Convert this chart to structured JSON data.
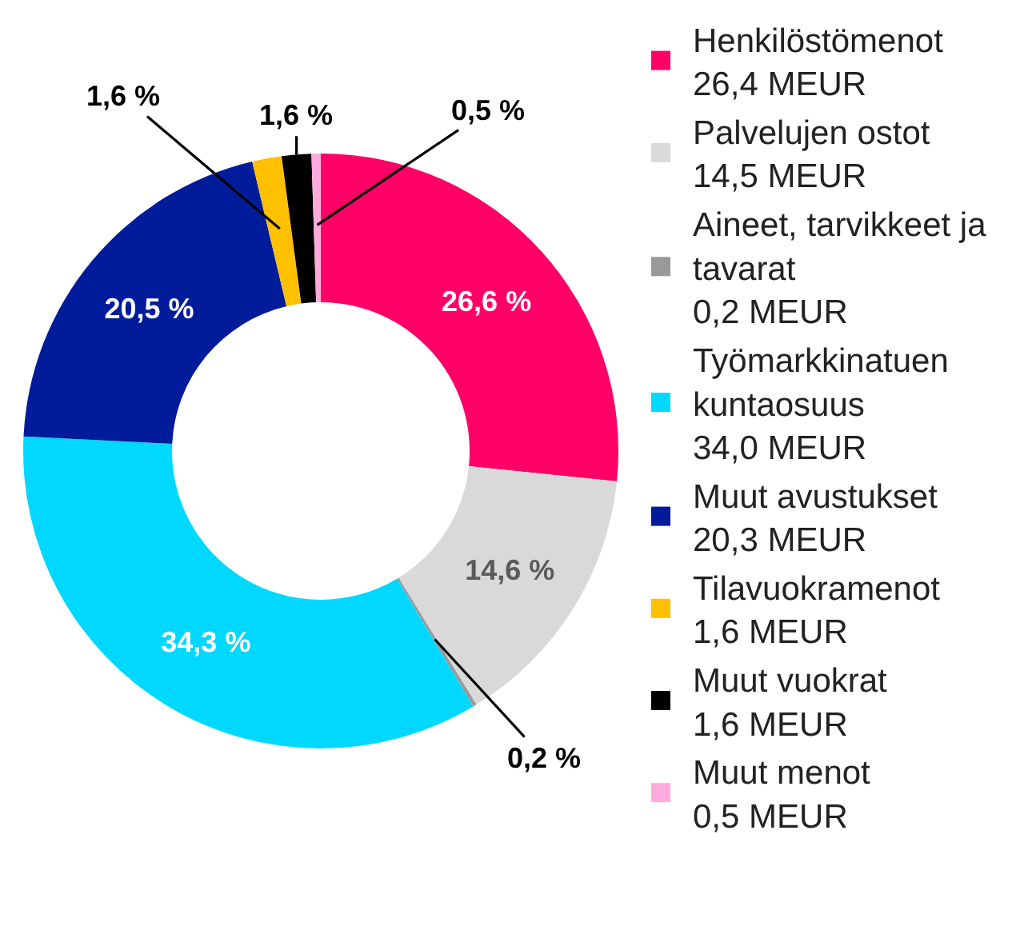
{
  "chart_data": {
    "type": "donut",
    "categories": [
      "Henkilöstömenot\n26,4 MEUR",
      "Palvelujen ostot\n14,5 MEUR",
      "Aineet, tarvikkeet ja\ntavarat\n0,2 MEUR",
      "Työmarkkinatuen\nkuntaosuus\n34,0 MEUR",
      "Muut avustukset\n20,3 MEUR",
      "Tilavuokramenot\n1,6 MEUR",
      "Muut vuokrat\n1,6 MEUR",
      "Muut menot\n0,5 MEUR"
    ],
    "values": [
      26.6,
      14.6,
      0.2,
      34.3,
      20.5,
      1.6,
      1.6,
      0.5
    ],
    "value_labels": [
      "26,6 %",
      "14,6 %",
      "0,2 %",
      "34,3 %",
      "20,5 %",
      "1,6 %",
      "1,6 %",
      "0,5 %"
    ],
    "colors": [
      "#ff0066",
      "#d9d9d9",
      "#999999",
      "#00d8ff",
      "#001c9a",
      "#ffc000",
      "#000000",
      "#ffaadd"
    ],
    "legend": "right"
  }
}
